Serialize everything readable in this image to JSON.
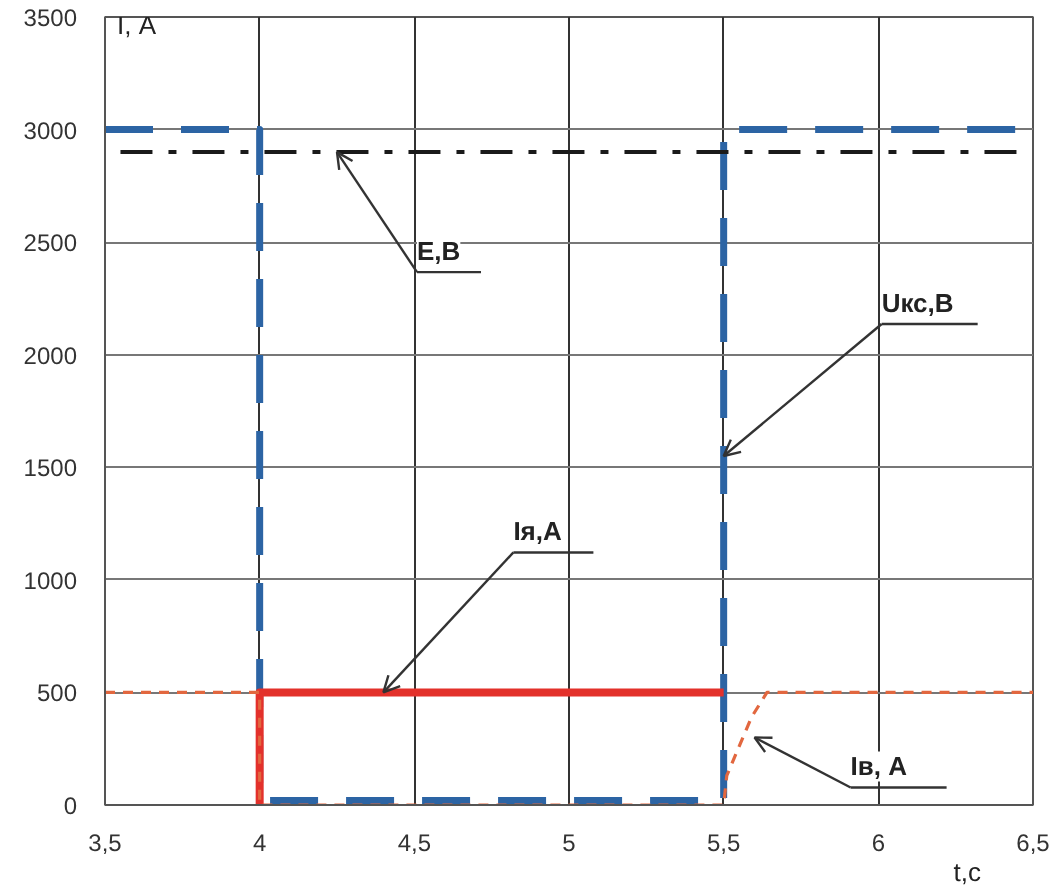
{
  "chart_data": {
    "type": "line",
    "xlabel": "t,с",
    "ylabel": "I, А",
    "xlim": [
      3.5,
      6.5
    ],
    "ylim": [
      0,
      3500
    ],
    "xticks": [
      {
        "value": 3.5,
        "label": "3,5"
      },
      4,
      {
        "value": 4.5,
        "label": "4,5"
      },
      5,
      {
        "value": 5.5,
        "label": "5,5"
      },
      6,
      {
        "value": 6.5,
        "label": "6,5"
      }
    ],
    "yticks": [
      0,
      500,
      1000,
      1500,
      2000,
      2500,
      3000,
      3500
    ],
    "grid": true,
    "marker": "none",
    "series": [
      {
        "color": "#2c64a4",
        "line_style": "dashed",
        "x": [
          3.5,
          4,
          4,
          5.5,
          5.5,
          6.5
        ],
        "values": [
          3000,
          3000,
          20,
          20,
          3000,
          3000
        ]
      },
      {
        "color": "#1a1a1a",
        "line_style": "dashdot",
        "x": [
          3.55,
          6.45
        ],
        "values": [
          2900,
          2900
        ]
      },
      {
        "color": "#e3312b",
        "line_style": "solid",
        "x": [
          4,
          4,
          5.5
        ],
        "values": [
          0,
          500,
          500
        ]
      },
      {
        "color": "#e2673f",
        "line_style": "dotted",
        "x": [
          3.5,
          4,
          4,
          5.5,
          5.51,
          5.59,
          5.64,
          6.5
        ],
        "values": [
          500,
          500,
          0,
          0,
          130,
          390,
          500,
          500
        ]
      }
    ],
    "annotations": [
      {
        "text": "Е,В",
        "x": 4.25,
        "y": 2900
      },
      {
        "text": "Uкс,В",
        "x": 5.5,
        "y": 1550
      },
      {
        "text": "Iя,А",
        "x": 4.4,
        "y": 500
      },
      {
        "text": "Iв, А",
        "x": 5.6,
        "y": 300
      }
    ]
  }
}
